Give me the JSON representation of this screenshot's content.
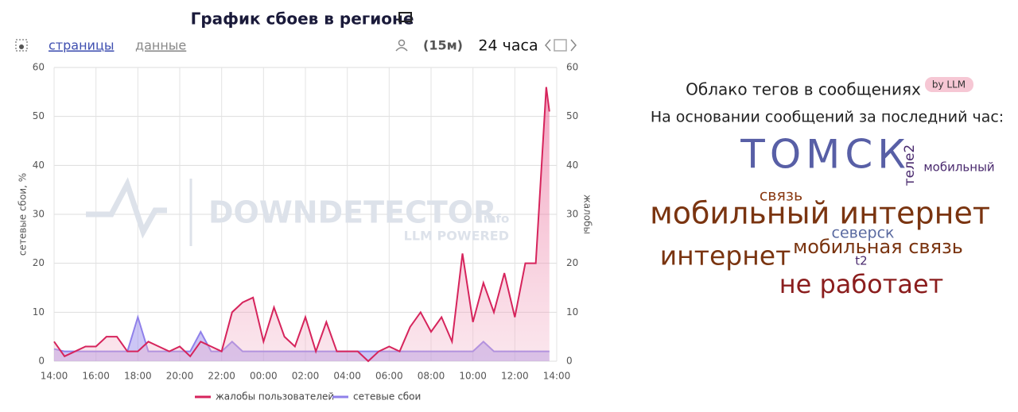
{
  "header": {
    "title": "График сбоев в регионе",
    "tab_pages": "страницы",
    "tab_data": "данные",
    "interval": "(15м)",
    "period": "24 часа"
  },
  "chart_data": {
    "type": "line",
    "x": [
      0,
      0.5,
      1,
      1.5,
      2,
      2.5,
      3,
      3.5,
      4,
      4.5,
      5,
      5.5,
      6,
      6.5,
      7,
      7.5,
      8,
      8.5,
      9,
      9.5,
      10,
      10.5,
      11,
      11.5,
      12,
      12.5,
      13,
      13.5,
      14,
      14.5,
      15,
      15.5,
      16,
      16.5,
      17,
      17.5,
      18,
      18.5,
      19,
      19.5,
      20,
      20.5,
      21,
      21.5,
      22,
      22.5,
      23,
      23.5,
      23.65
    ],
    "xlim": [
      0,
      24
    ],
    "xticks": [
      {
        "value": 0,
        "label": "14:00"
      },
      {
        "value": 2,
        "label": "16:00"
      },
      {
        "value": 4,
        "label": "18:00"
      },
      {
        "value": 6,
        "label": "20:00"
      },
      {
        "value": 8,
        "label": "22:00"
      },
      {
        "value": 10,
        "label": "00:00"
      },
      {
        "value": 12,
        "label": "02:00"
      },
      {
        "value": 14,
        "label": "04:00"
      },
      {
        "value": 16,
        "label": "06:00"
      },
      {
        "value": 18,
        "label": "08:00"
      },
      {
        "value": 20,
        "label": "10:00"
      },
      {
        "value": 22,
        "label": "12:00"
      },
      {
        "value": 24,
        "label": "14:00"
      }
    ],
    "ylim": [
      0,
      60
    ],
    "yticks": [
      0,
      10,
      20,
      30,
      40,
      50,
      60
    ],
    "y2lim": [
      0,
      60
    ],
    "y2ticks": [
      0,
      10,
      20,
      30,
      40,
      50,
      60
    ],
    "ylabel": "сетевые сбои, %",
    "y2label": "жалобы",
    "grid": true,
    "watermark": "DOWNDETECTOR",
    "watermark_suffix": ".info",
    "watermark_sub": "LLM POWERED",
    "series": [
      {
        "name": "жалобы пользователей",
        "color": "#d6245c",
        "axis": "y2",
        "values": [
          4,
          1,
          2,
          3,
          3,
          5,
          5,
          2,
          2,
          4,
          3,
          2,
          3,
          1,
          4,
          3,
          2,
          10,
          12,
          13,
          4,
          11,
          5,
          3,
          9,
          2,
          8,
          2,
          2,
          2,
          0,
          2,
          3,
          2,
          7,
          10,
          6,
          9,
          4,
          22,
          8,
          16,
          10,
          18,
          9,
          20,
          20,
          56,
          51
        ]
      },
      {
        "name": "сетевые сбои",
        "color": "#8f80ea",
        "values": [
          2.5,
          2,
          2,
          2,
          2,
          2,
          2,
          2,
          9,
          2,
          2,
          2,
          2,
          2,
          6,
          2,
          2,
          4,
          2,
          2,
          2,
          2,
          2,
          2,
          2,
          2,
          2,
          2,
          2,
          2,
          2,
          2,
          2,
          2,
          2,
          2,
          2,
          2,
          2,
          2,
          2,
          4,
          2,
          2,
          2,
          2,
          2,
          2,
          2
        ]
      }
    ]
  },
  "word_cloud": {
    "title": "Облако тегов в сообщениях",
    "badge": "by LLM",
    "subtitle": "На основании сообщений за последний час:",
    "words": [
      {
        "text": "ТОМСК",
        "color": "#585fa6"
      },
      {
        "text": "теле2",
        "color": "#4a2a6e"
      },
      {
        "text": "мобильный",
        "color": "#4a2a6e"
      },
      {
        "text": "связь",
        "color": "#8a3a12"
      },
      {
        "text": "мобильный интернет",
        "color": "#7a3410"
      },
      {
        "text": "северск",
        "color": "#5a6aa0"
      },
      {
        "text": "интернет",
        "color": "#7a3410"
      },
      {
        "text": "мобильная связь",
        "color": "#7a3410"
      },
      {
        "text": "t2",
        "color": "#4a2a6e"
      },
      {
        "text": "не работает",
        "color": "#8b1e1e"
      }
    ]
  }
}
